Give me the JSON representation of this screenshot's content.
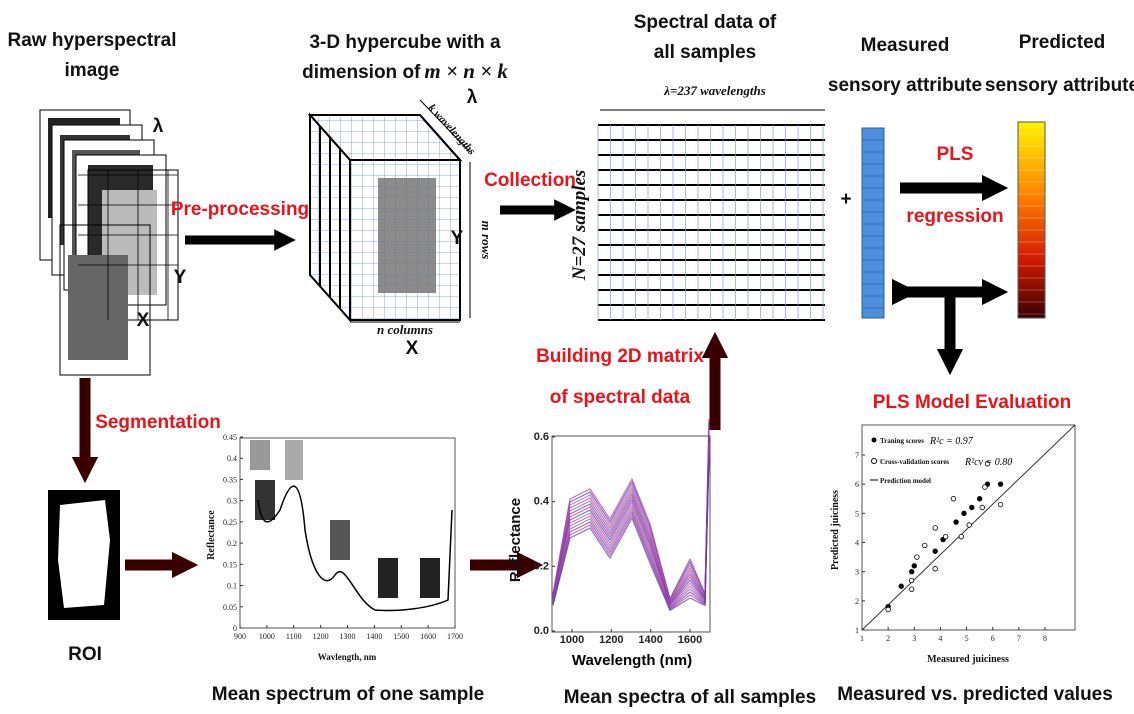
{
  "raw": {
    "title_line1": "Raw hyperspectral",
    "title_line2": "image",
    "lambda": "λ",
    "y": "Y",
    "x": "X"
  },
  "hypercube": {
    "title_line1": "3-D hypercube with a",
    "title_line2": "dimension of",
    "formula": "m × n × k",
    "lambda": "λ",
    "k_label": "k wavelengths",
    "m_label": "m rows",
    "n_label": "n columns",
    "y": "Y",
    "x": "X"
  },
  "matrix": {
    "title_line1": "Spectral data of",
    "title_line2": "all samples",
    "columns_label": "λ=237 wavelengths",
    "rows_label": "N=27 samples"
  },
  "plus": "+",
  "measured": {
    "title_line1": "Measured",
    "title_line2": "sensory attribute"
  },
  "predicted": {
    "title_line1": "Predicted",
    "title_line2": "sensory attribute"
  },
  "roi": "ROI",
  "steps": {
    "preprocessing": "Pre-processing",
    "collection": "Collection",
    "pls_line1": "PLS",
    "pls_line2": "regression",
    "evaluation": "PLS Model Evaluation",
    "building_line1": "Building 2D matrix",
    "building_line2": "of spectral data",
    "segmentation": "Segmentation"
  },
  "plot_one": {
    "y_label": "Reflectance",
    "x_label": "Wavlength, nm",
    "caption": "Mean spectrum of one sample",
    "xticks": [
      900,
      1000,
      1100,
      1200,
      1300,
      1400,
      1500,
      1600,
      1700
    ],
    "yticks": [
      0,
      0.05,
      0.1,
      0.15,
      0.2,
      0.25,
      0.3,
      0.35,
      0.4,
      0.45
    ]
  },
  "plot_all": {
    "y_label": "Reflectance",
    "x_label": "Wavelength (nm)",
    "caption": "Mean spectra of all samples",
    "xticks": [
      1000,
      1200,
      1400,
      1600
    ],
    "yticks": [
      {
        "value": 0,
        "label": "0.0"
      },
      {
        "value": 0.2,
        "label": "0.2"
      },
      {
        "value": 0.4,
        "label": "0.4"
      },
      {
        "value": 0.6,
        "label": "0.6"
      }
    ]
  },
  "scatter": {
    "y_label": "Predicted juiciness",
    "x_label": "Measured juiciness",
    "caption": "Measured vs. predicted values",
    "xticks": [
      1,
      2,
      3,
      4,
      5,
      6,
      7,
      8
    ],
    "yticks": [
      1,
      2,
      3,
      4,
      5,
      6,
      7
    ],
    "legend": [
      {
        "name": "Traning scores",
        "stat": "R²c = 0.97"
      },
      {
        "name": "Cross-validation scores",
        "stat": "R²cv = 0.80"
      },
      {
        "name": "Prediction model"
      }
    ],
    "training_points": [
      [
        2,
        1.8
      ],
      [
        2.5,
        2.5
      ],
      [
        2.9,
        3
      ],
      [
        3,
        3.2
      ],
      [
        3.8,
        3.7
      ],
      [
        4.1,
        4.1
      ],
      [
        4.6,
        4.7
      ],
      [
        4.9,
        5
      ],
      [
        5.2,
        5.2
      ],
      [
        5.5,
        5.5
      ],
      [
        5.8,
        6
      ],
      [
        6.3,
        6
      ]
    ],
    "cv_points": [
      [
        2,
        1.7
      ],
      [
        2.9,
        2.4
      ],
      [
        2.9,
        2.7
      ],
      [
        3.1,
        3.5
      ],
      [
        3.4,
        3.9
      ],
      [
        3.8,
        3.1
      ],
      [
        3.8,
        4.5
      ],
      [
        4.2,
        4.2
      ],
      [
        4.5,
        5.5
      ],
      [
        4.8,
        4.2
      ],
      [
        5.1,
        4.6
      ],
      [
        5.6,
        5.2
      ],
      [
        5.8,
        6.7
      ],
      [
        6.3,
        5.3
      ],
      [
        5.7,
        5.9
      ]
    ]
  }
}
